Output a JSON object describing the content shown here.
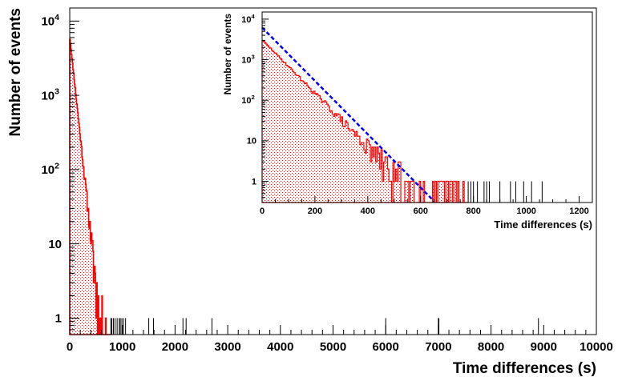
{
  "chart_data": [
    {
      "id": "main",
      "type": "histogram",
      "xlabel": "Time differences (s)",
      "ylabel": "Number of events",
      "xlim": [
        0,
        10000
      ],
      "ylim": [
        0.6,
        15000
      ],
      "yscale": "log",
      "grid": false,
      "legend": "none",
      "x_ticks": [
        {
          "value": 0,
          "label": "0"
        },
        {
          "value": 1000,
          "label": "1000"
        },
        {
          "value": 2000,
          "label": "2000"
        },
        {
          "value": 3000,
          "label": "3000"
        },
        {
          "value": 4000,
          "label": "4000"
        },
        {
          "value": 5000,
          "label": "5000"
        },
        {
          "value": 6000,
          "label": "6000"
        },
        {
          "value": 7000,
          "label": "7000"
        },
        {
          "value": 8000,
          "label": "8000"
        },
        {
          "value": 9000,
          "label": "9000"
        },
        {
          "value": 10000,
          "label": "10000"
        }
      ],
      "y_ticks": [
        {
          "value": 1,
          "label": "1"
        },
        {
          "value": 10,
          "label": "10"
        },
        {
          "value": 100,
          "label": "10",
          "exponent": "2"
        },
        {
          "value": 1000,
          "label": "10",
          "exponent": "3"
        },
        {
          "value": 10000,
          "label": "10",
          "exponent": "4"
        }
      ],
      "bin_width_s": 10,
      "decay": {
        "amplitude": 6200,
        "time_constant_s": 65
      },
      "fill_extent_s": 780,
      "single_event_times_s": [
        780,
        800,
        830,
        860,
        900,
        940,
        960,
        990,
        1020,
        1060,
        1500,
        1590,
        2150,
        2210,
        2700,
        6000,
        7000,
        7010,
        8900
      ]
    },
    {
      "id": "inset",
      "type": "histogram",
      "xlabel": "Time differences (s)",
      "ylabel": "Number of events",
      "xlim": [
        0,
        1250
      ],
      "ylim": [
        0.3,
        15000
      ],
      "yscale": "log",
      "grid": false,
      "legend": "none",
      "x_ticks": [
        {
          "value": 0,
          "label": "0"
        },
        {
          "value": 200,
          "label": "200"
        },
        {
          "value": 400,
          "label": "400"
        },
        {
          "value": 600,
          "label": "600"
        },
        {
          "value": 800,
          "label": "800"
        },
        {
          "value": 1000,
          "label": "1000"
        },
        {
          "value": 1200,
          "label": "1200"
        }
      ],
      "y_ticks": [
        {
          "value": 1,
          "label": "1"
        },
        {
          "value": 10,
          "label": "10"
        },
        {
          "value": 100,
          "label": "10",
          "exponent": "2"
        },
        {
          "value": 1000,
          "label": "10",
          "exponent": "3"
        },
        {
          "value": 10000,
          "label": "10",
          "exponent": "4"
        }
      ],
      "bin_width_s": 5,
      "decay": {
        "amplitude": 6200,
        "time_constant_s": 66
      },
      "fill_extent_s": 780,
      "fit": {
        "type": "exponential",
        "style": "dashed",
        "amplitude": 6200,
        "time_constant_s": 66,
        "x_range": [
          0,
          765
        ]
      },
      "single_event_times_s": [
        780,
        790,
        800,
        815,
        840,
        850,
        860,
        900,
        940,
        960,
        990,
        1020,
        1060
      ]
    }
  ],
  "colors": {
    "histogram_line": "#ff0000",
    "histogram_fill": "#ff0000",
    "fit_line": "#0000ff",
    "tail_bars": "#000000",
    "axes": "#000000",
    "background": "#ffffff"
  }
}
